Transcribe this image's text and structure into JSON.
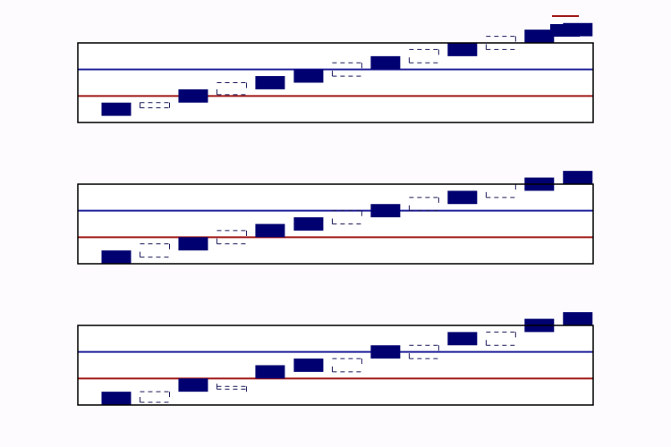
{
  "colors": {
    "background": "#fdfbfd",
    "frame": "#000000",
    "box": "#000070",
    "dashed": "#1a1a5a",
    "line_blue": "#1f1f9a",
    "line_red": "#a01818"
  },
  "legend": {
    "placement": "top-right",
    "entries": [
      {
        "color": "#a01818",
        "style": "line"
      },
      {
        "color": "#000070",
        "style": "box"
      }
    ]
  },
  "chart_data": [
    {
      "type": "box",
      "xlim": [
        0,
        13.4
      ],
      "ylim": [
        0,
        6
      ],
      "grid": false,
      "x": [
        1,
        2,
        3,
        4,
        5,
        6,
        7,
        8,
        9,
        10,
        11,
        12,
        13
      ],
      "kind": [
        "solid",
        "dashed",
        "solid",
        "dashed",
        "solid",
        "solid",
        "dashed",
        "solid",
        "dashed",
        "solid",
        "dashed",
        "solid",
        "solid"
      ],
      "low": [
        0.5,
        1.1,
        1.5,
        2.1,
        2.5,
        3.0,
        3.5,
        4.0,
        4.5,
        5.0,
        5.5,
        6.0,
        6.5
      ],
      "high": [
        1.5,
        1.5,
        2.5,
        3.0,
        3.5,
        4.0,
        4.5,
        5.0,
        5.5,
        6.0,
        6.5,
        7.0,
        7.5
      ],
      "hlines": [
        {
          "y": 2.0,
          "color": "#a01818"
        },
        {
          "y": 4.0,
          "color": "#1f1f9a"
        }
      ]
    },
    {
      "type": "box",
      "xlim": [
        0,
        13.4
      ],
      "ylim": [
        0,
        6
      ],
      "grid": false,
      "x": [
        1,
        2,
        3,
        4,
        5,
        6,
        7,
        8,
        9,
        10,
        11,
        12,
        13
      ],
      "kind": [
        "solid",
        "dashed",
        "solid",
        "dashed",
        "solid",
        "solid",
        "dashed",
        "solid",
        "dashed",
        "solid",
        "dashed",
        "solid",
        "solid"
      ],
      "low": [
        0.0,
        0.5,
        1.0,
        1.5,
        2.0,
        2.5,
        3.0,
        3.5,
        4.0,
        4.5,
        5.0,
        5.5,
        6.0
      ],
      "high": [
        1.0,
        1.5,
        2.0,
        2.5,
        3.0,
        3.5,
        4.0,
        4.5,
        5.0,
        5.5,
        6.0,
        6.5,
        7.0
      ],
      "hlines": [
        {
          "y": 2.0,
          "color": "#a01818"
        },
        {
          "y": 4.0,
          "color": "#1f1f9a"
        }
      ]
    },
    {
      "type": "box",
      "xlim": [
        0,
        13.4
      ],
      "ylim": [
        0,
        6
      ],
      "grid": false,
      "x": [
        1,
        2,
        3,
        4,
        5,
        6,
        7,
        8,
        9,
        10,
        11,
        12,
        13
      ],
      "kind": [
        "solid",
        "dashed",
        "solid",
        "dashed",
        "solid",
        "solid",
        "dashed",
        "solid",
        "dashed",
        "solid",
        "dashed",
        "solid",
        "solid"
      ],
      "low": [
        0.0,
        0.2,
        1.0,
        1.2,
        2.0,
        2.5,
        2.5,
        3.5,
        3.5,
        4.5,
        4.5,
        5.5,
        6.0
      ],
      "high": [
        1.0,
        1.0,
        2.0,
        1.4,
        3.0,
        3.5,
        3.5,
        4.5,
        4.5,
        5.5,
        5.5,
        6.5,
        7.0
      ],
      "hlines": [
        {
          "y": 2.0,
          "color": "#a01818"
        },
        {
          "y": 4.0,
          "color": "#1f1f9a"
        }
      ]
    }
  ]
}
